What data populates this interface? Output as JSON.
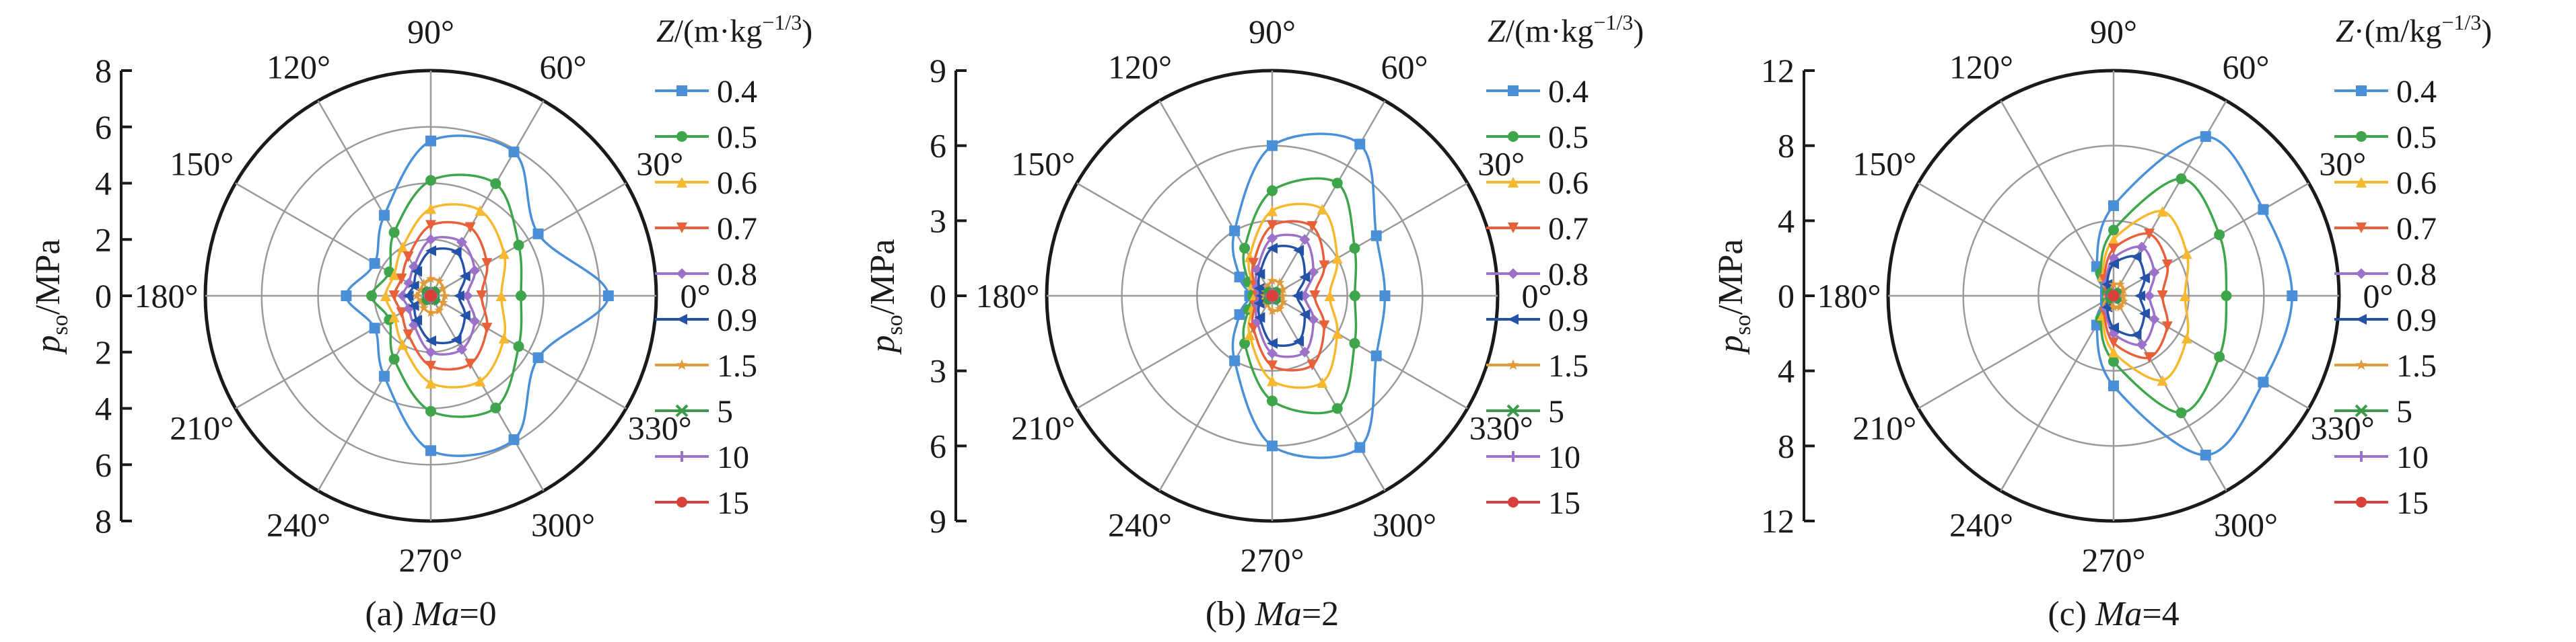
{
  "figure": {
    "angle_labels": [
      "0°",
      "30°",
      "60°",
      "90°",
      "120°",
      "150°",
      "180°",
      "210°",
      "240°",
      "270°",
      "300°",
      "330°"
    ],
    "ylabel": "p_so/MPa",
    "ylabel_main": "p",
    "ylabel_sub": "so",
    "ylabel_unit": "/MPa"
  },
  "chart_data": [
    {
      "type": "polar-line",
      "caption_prefix": "(a) ",
      "caption_var": "Ma",
      "caption_value": "=0",
      "radial_max": 8,
      "radial_ticks": [
        "8",
        "6",
        "4",
        "2",
        "0",
        "2",
        "4",
        "6",
        "8"
      ],
      "legend_title": "Z/(m·kg^-1/3)",
      "legend_title_var": "Z",
      "legend_title_unit": "/(m·kg",
      "legend_title_sup": "−1/3",
      "legend_title_close": ")",
      "series": [
        {
          "name": "0.4",
          "color": "#4a90d9",
          "marker": "square",
          "values": [
            6.3,
            4.4,
            5.9,
            5.5,
            3.3,
            2.3,
            3.0,
            2.3,
            3.3,
            5.5,
            5.9,
            4.4
          ]
        },
        {
          "name": "0.5",
          "color": "#3ea54a",
          "marker": "circle",
          "values": [
            3.2,
            3.6,
            4.6,
            4.1,
            2.6,
            1.7,
            2.1,
            1.7,
            2.6,
            4.1,
            4.6,
            3.6
          ]
        },
        {
          "name": "0.6",
          "color": "#f5b82e",
          "marker": "triangle-up",
          "values": [
            2.5,
            3.0,
            3.5,
            3.1,
            2.0,
            1.5,
            1.6,
            1.5,
            2.0,
            3.1,
            3.5,
            3.0
          ]
        },
        {
          "name": "0.7",
          "color": "#e8603a",
          "marker": "triangle-down",
          "values": [
            1.8,
            2.3,
            2.8,
            2.5,
            1.6,
            1.2,
            1.3,
            1.2,
            1.6,
            2.5,
            2.8,
            2.3
          ]
        },
        {
          "name": "0.8",
          "color": "#9b72c8",
          "marker": "diamond",
          "values": [
            1.3,
            1.8,
            2.2,
            2.0,
            1.2,
            0.9,
            1.0,
            0.9,
            1.2,
            2.0,
            2.2,
            1.8
          ]
        },
        {
          "name": "0.9",
          "color": "#2452a8",
          "marker": "triangle-left",
          "values": [
            1.0,
            1.4,
            1.8,
            1.6,
            1.0,
            0.7,
            0.8,
            0.7,
            1.0,
            1.6,
            1.8,
            1.4
          ]
        },
        {
          "name": "1.5",
          "color": "#e09a3a",
          "marker": "star",
          "values": [
            0.5,
            0.5,
            0.6,
            0.6,
            0.5,
            0.4,
            0.5,
            0.4,
            0.5,
            0.6,
            0.6,
            0.5
          ]
        },
        {
          "name": "5",
          "color": "#3a9a4a",
          "marker": "x",
          "values": [
            0.15,
            0.15,
            0.15,
            0.15,
            0.15,
            0.15,
            0.15,
            0.15,
            0.15,
            0.15,
            0.15,
            0.15
          ]
        },
        {
          "name": "10",
          "color": "#9b72c8",
          "marker": "plus",
          "values": [
            0.08,
            0.08,
            0.08,
            0.08,
            0.08,
            0.08,
            0.08,
            0.08,
            0.08,
            0.08,
            0.08,
            0.08
          ]
        },
        {
          "name": "15",
          "color": "#d9403a",
          "marker": "circle",
          "values": [
            0.05,
            0.05,
            0.05,
            0.05,
            0.05,
            0.05,
            0.05,
            0.05,
            0.05,
            0.05,
            0.05,
            0.05
          ]
        }
      ]
    },
    {
      "type": "polar-line",
      "caption_prefix": "(b) ",
      "caption_var": "Ma",
      "caption_value": "=2",
      "radial_max": 9,
      "radial_ticks": [
        "9",
        "6",
        "3",
        "0",
        "3",
        "6",
        "9"
      ],
      "legend_title": "Z/(m·kg^-1/3)",
      "legend_title_var": "Z",
      "legend_title_unit": "/(m·kg",
      "legend_title_sup": "−1/3",
      "legend_title_close": ")",
      "series": [
        {
          "name": "0.4",
          "color": "#4a90d9",
          "marker": "square",
          "values": [
            4.5,
            4.8,
            7.0,
            6.0,
            3.0,
            1.5,
            0.9,
            1.5,
            3.0,
            6.0,
            7.0,
            4.8
          ]
        },
        {
          "name": "0.5",
          "color": "#3ea54a",
          "marker": "circle",
          "values": [
            3.3,
            3.8,
            5.2,
            4.2,
            2.2,
            1.1,
            0.8,
            1.1,
            2.2,
            4.2,
            5.2,
            3.8
          ]
        },
        {
          "name": "0.6",
          "color": "#f5b82e",
          "marker": "triangle-up",
          "values": [
            2.3,
            3.0,
            4.0,
            3.4,
            1.8,
            0.9,
            0.7,
            0.9,
            1.8,
            3.4,
            4.0,
            3.0
          ]
        },
        {
          "name": "0.7",
          "color": "#e8603a",
          "marker": "triangle-down",
          "values": [
            1.7,
            2.4,
            3.2,
            2.8,
            1.5,
            0.8,
            0.6,
            0.8,
            1.5,
            2.8,
            3.2,
            2.4
          ]
        },
        {
          "name": "0.8",
          "color": "#9b72c8",
          "marker": "diamond",
          "values": [
            1.3,
            1.9,
            2.6,
            2.3,
            1.2,
            0.7,
            0.5,
            0.7,
            1.2,
            2.3,
            2.6,
            1.9
          ]
        },
        {
          "name": "0.9",
          "color": "#2452a8",
          "marker": "triangle-left",
          "values": [
            1.0,
            1.5,
            2.1,
            1.9,
            1.0,
            0.6,
            0.45,
            0.6,
            1.0,
            1.9,
            2.1,
            1.5
          ]
        },
        {
          "name": "1.5",
          "color": "#e09a3a",
          "marker": "star",
          "values": [
            0.4,
            0.5,
            0.6,
            0.6,
            0.4,
            0.3,
            0.3,
            0.3,
            0.4,
            0.6,
            0.6,
            0.5
          ]
        },
        {
          "name": "5",
          "color": "#3a9a4a",
          "marker": "x",
          "values": [
            0.15,
            0.15,
            0.15,
            0.15,
            0.15,
            0.15,
            0.15,
            0.15,
            0.15,
            0.15,
            0.15,
            0.15
          ]
        },
        {
          "name": "10",
          "color": "#9b72c8",
          "marker": "plus",
          "values": [
            0.08,
            0.08,
            0.08,
            0.08,
            0.08,
            0.08,
            0.08,
            0.08,
            0.08,
            0.08,
            0.08,
            0.08
          ]
        },
        {
          "name": "15",
          "color": "#d9403a",
          "marker": "circle",
          "values": [
            0.05,
            0.05,
            0.05,
            0.05,
            0.05,
            0.05,
            0.05,
            0.05,
            0.05,
            0.05,
            0.05,
            0.05
          ]
        }
      ]
    },
    {
      "type": "polar-line",
      "caption_prefix": "(c) ",
      "caption_var": "Ma",
      "caption_value": "=4",
      "radial_max": 12,
      "radial_ticks": [
        "12",
        "8",
        "4",
        "0",
        "4",
        "8",
        "12"
      ],
      "legend_title": "Z·(m/kg^-1/3)",
      "legend_title_var": "Z",
      "legend_title_unit": "·(m/kg",
      "legend_title_sup": "−1/3",
      "legend_title_close": ")",
      "series": [
        {
          "name": "0.4",
          "color": "#4a90d9",
          "marker": "square",
          "values": [
            9.5,
            9.2,
            9.8,
            4.8,
            1.8,
            0.5,
            0.3,
            0.5,
            1.8,
            4.8,
            9.8,
            9.2
          ]
        },
        {
          "name": "0.5",
          "color": "#3ea54a",
          "marker": "circle",
          "values": [
            6.0,
            6.5,
            7.2,
            3.5,
            1.4,
            0.4,
            0.25,
            0.4,
            1.4,
            3.5,
            7.2,
            6.5
          ]
        },
        {
          "name": "0.6",
          "color": "#f5b82e",
          "marker": "triangle-up",
          "values": [
            3.8,
            4.5,
            5.2,
            3.0,
            1.2,
            0.35,
            0.2,
            0.35,
            1.2,
            3.0,
            5.2,
            4.5
          ]
        },
        {
          "name": "0.7",
          "color": "#e8603a",
          "marker": "triangle-down",
          "values": [
            2.6,
            3.3,
            3.8,
            2.5,
            1.0,
            0.3,
            0.2,
            0.3,
            1.0,
            2.5,
            3.8,
            3.3
          ]
        },
        {
          "name": "0.8",
          "color": "#9b72c8",
          "marker": "diamond",
          "values": [
            1.9,
            2.5,
            3.0,
            2.0,
            0.8,
            0.25,
            0.15,
            0.25,
            0.8,
            2.0,
            3.0,
            2.5
          ]
        },
        {
          "name": "0.9",
          "color": "#2452a8",
          "marker": "triangle-left",
          "values": [
            1.4,
            1.9,
            2.4,
            1.7,
            0.7,
            0.2,
            0.15,
            0.2,
            0.7,
            1.7,
            2.4,
            1.9
          ]
        },
        {
          "name": "1.5",
          "color": "#e09a3a",
          "marker": "star",
          "values": [
            0.5,
            0.6,
            0.7,
            0.6,
            0.3,
            0.15,
            0.1,
            0.15,
            0.3,
            0.6,
            0.7,
            0.6
          ]
        },
        {
          "name": "5",
          "color": "#3a9a4a",
          "marker": "x",
          "values": [
            0.15,
            0.15,
            0.15,
            0.15,
            0.15,
            0.15,
            0.15,
            0.15,
            0.15,
            0.15,
            0.15,
            0.15
          ]
        },
        {
          "name": "10",
          "color": "#9b72c8",
          "marker": "plus",
          "values": [
            0.08,
            0.08,
            0.08,
            0.08,
            0.08,
            0.08,
            0.08,
            0.08,
            0.08,
            0.08,
            0.08,
            0.08
          ]
        },
        {
          "name": "15",
          "color": "#d9403a",
          "marker": "circle",
          "values": [
            0.05,
            0.05,
            0.05,
            0.05,
            0.05,
            0.05,
            0.05,
            0.05,
            0.05,
            0.05,
            0.05,
            0.05
          ]
        }
      ]
    }
  ]
}
